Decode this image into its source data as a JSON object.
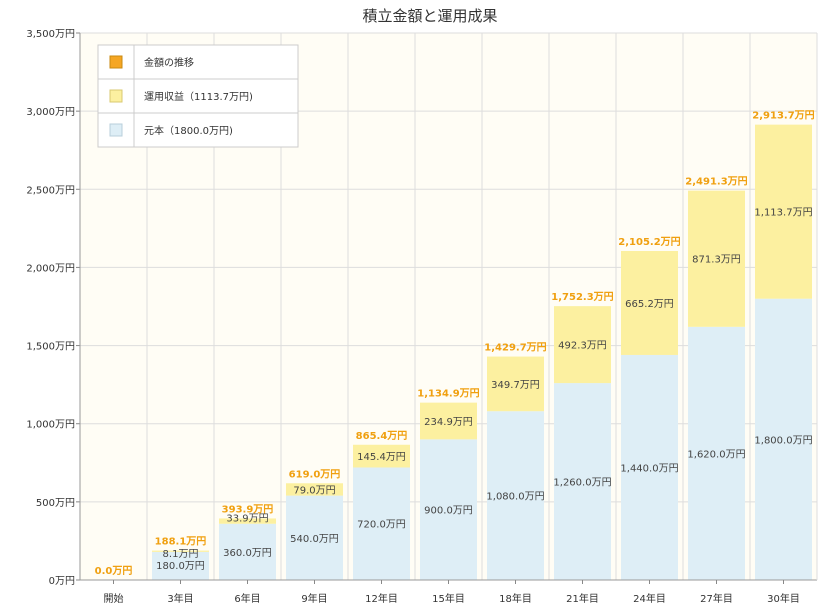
{
  "chart_data": {
    "type": "bar",
    "stacked": true,
    "title": "積立金額と運用成果",
    "categories": [
      "開始",
      "3年目",
      "6年目",
      "9年目",
      "12年目",
      "15年目",
      "18年目",
      "21年目",
      "24年目",
      "27年目",
      "30年目"
    ],
    "series": [
      {
        "name": "元本（1800.0万円)",
        "color": "#deeef6",
        "values": [
          0,
          180,
          360,
          540,
          720,
          900,
          1080,
          1260,
          1440,
          1620,
          1800
        ],
        "labels": [
          "",
          "180.0万円",
          "360.0万円",
          "540.0万円",
          "720.0万円",
          "900.0万円",
          "1,080.0万円",
          "1,260.0万円",
          "1,440.0万円",
          "1,620.0万円",
          "1,800.0万円"
        ]
      },
      {
        "name": "運用収益（1113.7万円)",
        "color": "#fcf0a0",
        "values": [
          0,
          8.1,
          33.9,
          79.0,
          145.4,
          234.9,
          349.7,
          492.3,
          665.2,
          871.3,
          1113.7
        ],
        "labels": [
          "",
          "8.1万円",
          "33.9万円",
          "79.0万円",
          "145.4万円",
          "234.9万円",
          "349.7万円",
          "492.3万円",
          "665.2万円",
          "871.3万円",
          "1,113.7万円"
        ]
      }
    ],
    "totals": {
      "name": "金額の推移",
      "color": "#f5a623",
      "values": [
        0,
        188.1,
        393.9,
        619.0,
        865.4,
        1134.9,
        1429.7,
        1752.3,
        2105.2,
        2491.3,
        2913.7
      ],
      "labels": [
        "0.0万円",
        "188.1万円",
        "393.9万円",
        "619.0万円",
        "865.4万円",
        "1,134.9万円",
        "1,429.7万円",
        "1,752.3万円",
        "2,105.2万円",
        "2,491.3万円",
        "2,913.7万円"
      ]
    },
    "ylim": [
      0,
      3500
    ],
    "yticks": [
      0,
      500,
      1000,
      1500,
      2000,
      2500,
      3000,
      3500
    ],
    "ytick_labels": [
      "0万円",
      "500万円",
      "1,000万円",
      "1,500万円",
      "2,000万円",
      "2,500万円",
      "3,000万円",
      "3,500万円"
    ],
    "grid": true,
    "legend_position": "top-left",
    "background_color": "#fffdf5",
    "grid_color": "#dddddd"
  }
}
